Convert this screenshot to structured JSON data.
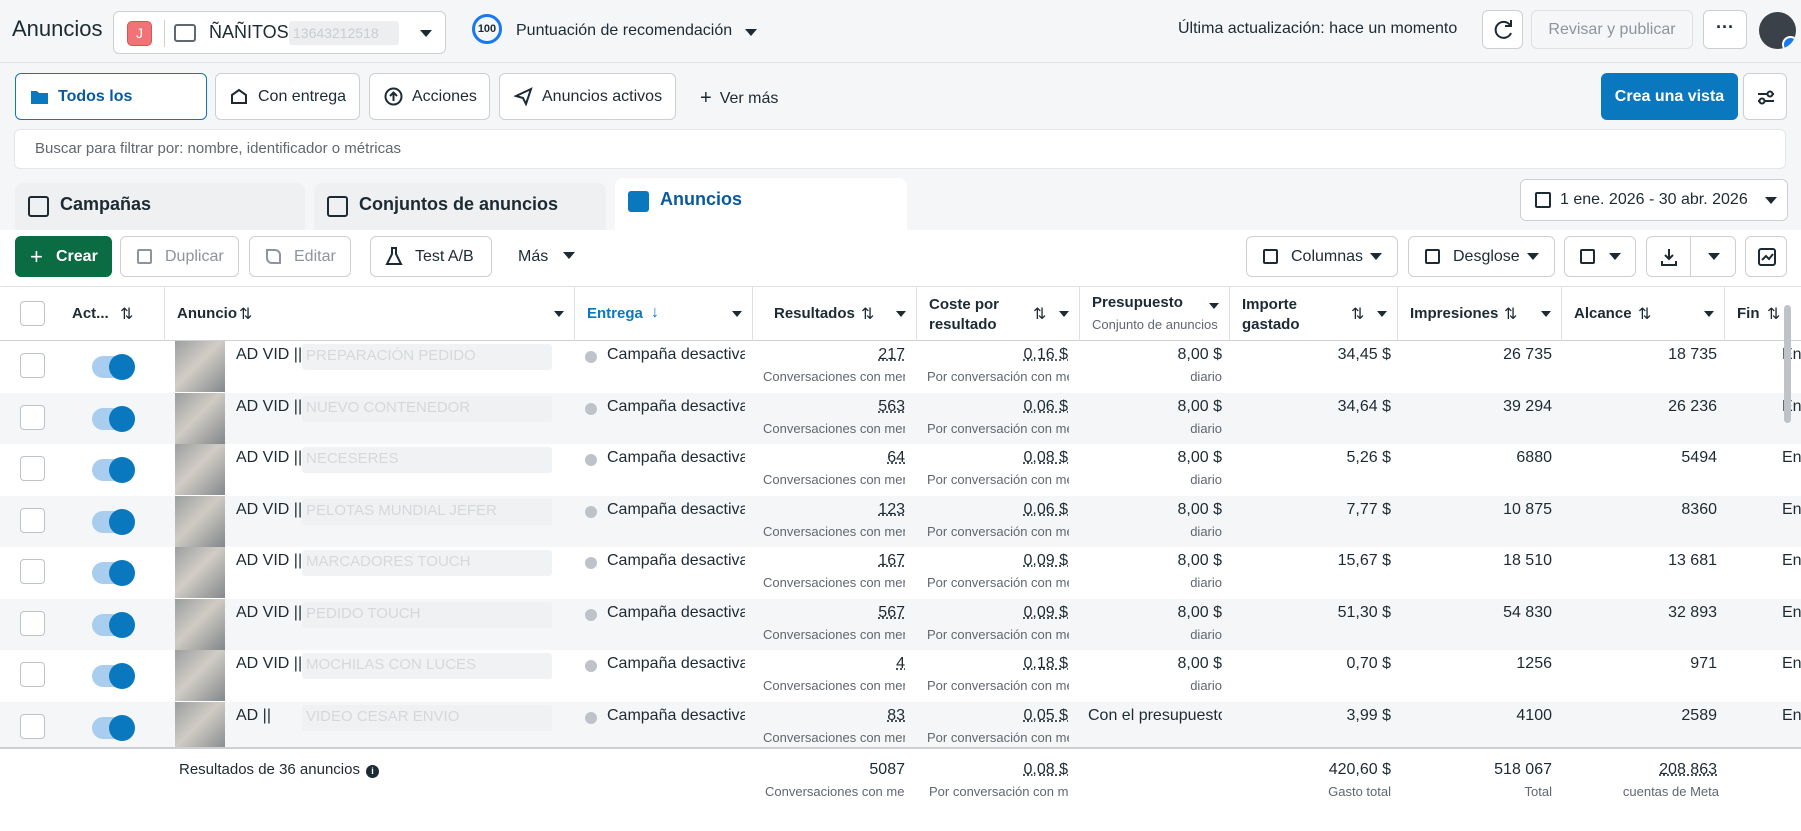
{
  "header": {
    "title": "Anuncios",
    "account_badge": "J",
    "account_name": "ÑAÑITOS (",
    "account_id_blurred": "13643212518",
    "score_value": "100",
    "score_label": "Puntuación de recomendación",
    "last_update": "Última actualización: hace un momento",
    "review_publish": "Revisar y publicar",
    "more": "···"
  },
  "filters": {
    "all": "Todos los anuncios",
    "delivered": "Con entrega",
    "actions": "Acciones",
    "active": "Anuncios activos",
    "see_more": "Ver más",
    "create_view": "Crea una vista"
  },
  "search": {
    "placeholder": "Buscar para filtrar por: nombre, identificador o métricas"
  },
  "tabs": {
    "campaigns": "Campañas",
    "adsets": "Conjuntos de anuncios",
    "ads": "Anuncios"
  },
  "date_range": "1 ene. 2026 - 30 abr. 2026",
  "toolbar": {
    "create": "Crear",
    "duplicate": "Duplicar",
    "edit": "Editar",
    "ab_test": "Test A/B",
    "more": "Más",
    "columns": "Columnas",
    "breakdown": "Desglose"
  },
  "columns": {
    "active": "Act...",
    "ad": "Anuncio",
    "delivery": "Entrega",
    "results": "Resultados",
    "cost_per_result_1": "Coste por",
    "cost_per_result_2": "resultado",
    "budget": "Presupuesto",
    "budget_sub": "Conjunto de anuncios",
    "spent_1": "Importe",
    "spent_2": "gastado",
    "impressions": "Impresiones",
    "reach": "Alcance",
    "end": "Fin"
  },
  "rows": [
    {
      "name": "AD VID ||",
      "blur": "PREPARACIÓN PEDIDO",
      "status": "Campaña desactivada",
      "results": "217",
      "results_sub": "Conversaciones con mensajes iniciadas",
      "cpr": "0,16 $",
      "cpr_sub": "Por conversación con mensajes iniciada",
      "budget": "8,00 $",
      "budget_sub": "diario",
      "spent": "34,45 $",
      "impressions": "26 735",
      "reach": "18 735",
      "end": "En"
    },
    {
      "name": "AD VID ||",
      "blur": "NUEVO CONTENEDOR",
      "status": "Campaña desactivada",
      "results": "563",
      "results_sub": "Conversaciones con mensajes iniciadas",
      "cpr": "0,06 $",
      "cpr_sub": "Por conversación con mensajes iniciada",
      "budget": "8,00 $",
      "budget_sub": "diario",
      "spent": "34,64 $",
      "impressions": "39 294",
      "reach": "26 236",
      "end": "En"
    },
    {
      "name": "AD VID ||",
      "blur": "NECESERES",
      "status": "Campaña desactivada",
      "results": "64",
      "results_sub": "Conversaciones con mensajes iniciadas",
      "cpr": "0,08 $",
      "cpr_sub": "Por conversación con mensajes iniciada",
      "budget": "8,00 $",
      "budget_sub": "diario",
      "spent": "5,26 $",
      "impressions": "6880",
      "reach": "5494",
      "end": "En"
    },
    {
      "name": "AD VID ||",
      "blur": "PELOTAS MUNDIAL JEFER",
      "status": "Campaña desactivada",
      "results": "123",
      "results_sub": "Conversaciones con mensajes iniciadas",
      "cpr": "0,06 $",
      "cpr_sub": "Por conversación con mensajes iniciada",
      "budget": "8,00 $",
      "budget_sub": "diario",
      "spent": "7,77 $",
      "impressions": "10 875",
      "reach": "8360",
      "end": "En"
    },
    {
      "name": "AD VID ||",
      "blur": "MARCADORES TOUCH",
      "status": "Campaña desactivada",
      "results": "167",
      "results_sub": "Conversaciones con mensajes iniciadas",
      "cpr": "0,09 $",
      "cpr_sub": "Por conversación con mensajes iniciada",
      "budget": "8,00 $",
      "budget_sub": "diario",
      "spent": "15,67 $",
      "impressions": "18 510",
      "reach": "13 681",
      "end": "En"
    },
    {
      "name": "AD VID ||",
      "blur": "PEDIDO TOUCH",
      "status": "Campaña desactivada",
      "results": "567",
      "results_sub": "Conversaciones con mensajes iniciadas",
      "cpr": "0,09 $",
      "cpr_sub": "Por conversación con mensajes iniciada",
      "budget": "8,00 $",
      "budget_sub": "diario",
      "spent": "51,30 $",
      "impressions": "54 830",
      "reach": "32 893",
      "end": "En"
    },
    {
      "name": "AD VID ||",
      "blur": "MOCHILAS CON LUCES",
      "status": "Campaña desactivada",
      "results": "4",
      "results_sub": "Conversaciones con mensajes iniciadas",
      "cpr": "0,18 $",
      "cpr_sub": "Por conversación con mensajes iniciada",
      "budget": "8,00 $",
      "budget_sub": "diario",
      "spent": "0,70 $",
      "impressions": "1256",
      "reach": "971",
      "end": "En"
    },
    {
      "name": "AD ||",
      "blur": "VIDEO CESAR ENVIO",
      "status": "Campaña desactivada",
      "results": "83",
      "results_sub": "Conversaciones con mensajes iniciadas",
      "cpr": "0,05 $",
      "cpr_sub": "Por conversación con mensajes iniciada",
      "budget": "Con el presupuesto de la campaña",
      "budget_sub": "",
      "spent": "3,99 $",
      "impressions": "4100",
      "reach": "2589",
      "end": "En"
    }
  ],
  "footer": {
    "label": "Resultados de 36 anuncios",
    "results": "5087",
    "results_sub": "Conversaciones con mensajes iniciadas",
    "cpr": "0,08 $",
    "cpr_sub": "Por conversación con mensajes iniciada",
    "spent": "420,60 $",
    "spent_sub": "Gasto total",
    "impressions": "518 067",
    "impressions_sub": "Total",
    "reach": "208 863",
    "reach_sub": "cuentas de Meta"
  },
  "colors": {
    "accent": "#0a78be",
    "create": "#0b6b43",
    "badge": "#f27377"
  }
}
